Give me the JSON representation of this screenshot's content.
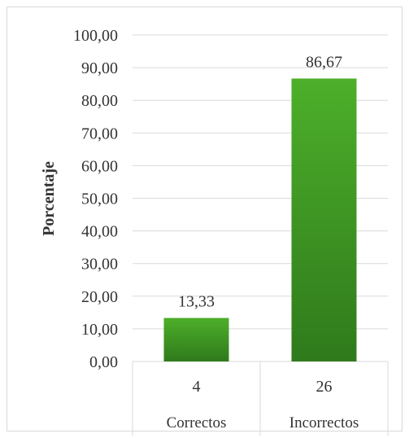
{
  "chart_data": {
    "type": "bar",
    "categories": [
      "Correctos",
      "Incorrectos"
    ],
    "counts": [
      "4",
      "26"
    ],
    "values": [
      13.33,
      86.67
    ],
    "value_labels": [
      "13,33",
      "86,67"
    ],
    "ylabel": "Porcentaje",
    "xlabel": "",
    "title": "",
    "ylim": [
      0,
      100
    ],
    "yticks": [
      "0,00",
      "10,00",
      "20,00",
      "30,00",
      "40,00",
      "50,00",
      "60,00",
      "70,00",
      "80,00",
      "90,00",
      "100,00"
    ],
    "grid": true,
    "legend": "none",
    "bar_color_top": "#4daf2a",
    "bar_color_bottom": "#2f7a1c",
    "grid_color": "#d9d9d9"
  }
}
